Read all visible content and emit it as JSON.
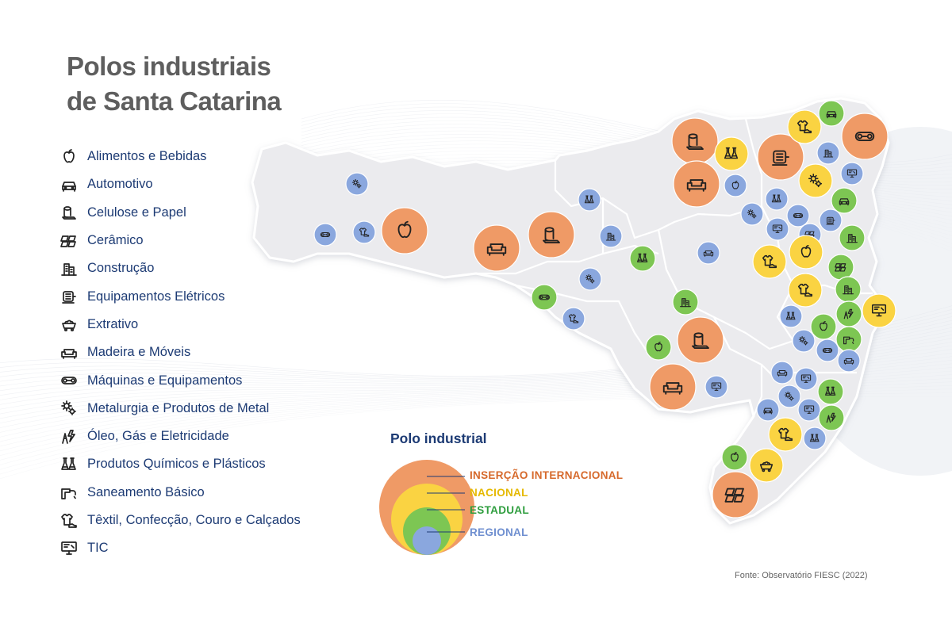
{
  "title": {
    "line1": "Polos industriais",
    "line2": "de Santa Catarina"
  },
  "legend": [
    {
      "icon": "apple-icon",
      "label": "Alimentos e Bebidas"
    },
    {
      "icon": "car-icon",
      "label": "Automotivo"
    },
    {
      "icon": "paper-roll-icon",
      "label": "Celulose e Papel"
    },
    {
      "icon": "tiles-icon",
      "label": "Cerâmico"
    },
    {
      "icon": "buildings-icon",
      "label": "Construção"
    },
    {
      "icon": "electric-motor-icon",
      "label": "Equipamentos Elétricos"
    },
    {
      "icon": "mining-cart-icon",
      "label": "Extrativo"
    },
    {
      "icon": "sofa-icon",
      "label": "Madeira e Móveis"
    },
    {
      "icon": "conveyor-belt-icon",
      "label": "Máquinas e Equipamentos"
    },
    {
      "icon": "gears-icon",
      "label": "Metalurgia e Produtos de Metal"
    },
    {
      "icon": "lightning-tower-icon",
      "label": "Óleo, Gás e Eletricidade"
    },
    {
      "icon": "flasks-icon",
      "label": "Produtos Químicos e Plásticos"
    },
    {
      "icon": "pipe-faucet-icon",
      "label": "Saneamento Básico"
    },
    {
      "icon": "shirt-shoe-icon",
      "label": "Têxtil, Confecção, Couro e Calçados"
    },
    {
      "icon": "computer-icon",
      "label": "TIC"
    }
  ],
  "tier_legend": {
    "title": "Polo industrial",
    "tiers": [
      {
        "key": "internacional",
        "label": "INSERÇÃO INTERNACIONAL",
        "color": "#ef9a66",
        "text_color": "#d6692b"
      },
      {
        "key": "nacional",
        "label": "NACIONAL",
        "color": "#fad342",
        "text_color": "#e5b900"
      },
      {
        "key": "estadual",
        "label": "ESTADUAL",
        "color": "#7dc653",
        "text_color": "#2f9e3f"
      },
      {
        "key": "regional",
        "label": "REGIONAL",
        "color": "#8aa7de",
        "text_color": "#6f8fd0"
      }
    ]
  },
  "source": "Fonte: Observatório FIESC (2022)",
  "colors": {
    "text_dark": "#1d3b74",
    "title": "#5e5e5e",
    "map_fill": "#ececef",
    "map_border": "#ffffff"
  }
}
